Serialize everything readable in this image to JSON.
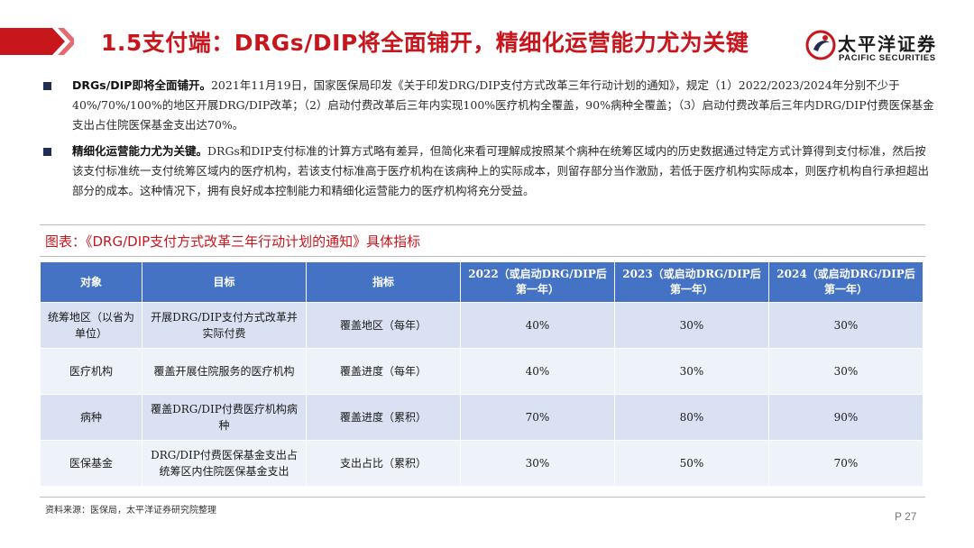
{
  "header": {
    "title": "1.5支付端：DRGs/DIP将全面铺开，精细化运营能力尤为关键",
    "accent_color": "#c8161d"
  },
  "logo": {
    "name_cn": "太平洋证券",
    "name_en": "PACIFIC SECURITIES"
  },
  "bullets": [
    {
      "lead": "DRGs/DIP即将全面铺开。",
      "text": "2021年11月19日，国家医保局印发《关于印发DRG/DIP支付方式改革三年行动计划的通知》，规定（1）2022/2023/2024年分别不少于40%/70%/100%的地区开展DRG/DIP改革；（2）启动付费改革后三年内实现100%医疗机构全覆盖，90%病种全覆盖；（3）启动付费改革后三年内DRG/DIP付费医保基金支出占住院医保基金支出达70%。"
    },
    {
      "lead": "精细化运营能力尤为关键。",
      "text": "DRGs和DIP支付标准的计算方式略有差异，但简化来看可理解成按照某个病种在统筹区域内的历史数据通过特定方式计算得到支付标准，然后按该支付标准统一支付统筹区域内的医疗机构，若该支付标准高于医疗机构在该病种上的实际成本，则留存部分当作激励，若低于医疗机构实际成本，则医疗机构自行承担超出部分的成本。这种情况下，拥有良好成本控制能力和精细化运营能力的医疗机构将充分受益。"
    }
  ],
  "chart_caption": "图表：《DRG/DIP支付方式改革三年行动计划的通知》具体指标",
  "table": {
    "headers": [
      "对象",
      "目标",
      "指标",
      "2022（或启动DRG/DIP后第一年）",
      "2023（或启动DRG/DIP后第一年）",
      "2024（或启动DRG/DIP后第一年）"
    ],
    "rows": [
      [
        "统筹地区（以省为单位）",
        "开展DRG/DIP支付方式改革并实际付费",
        "覆盖地区（每年）",
        "40%",
        "30%",
        "30%"
      ],
      [
        "医疗机构",
        "覆盖开展住院服务的医疗机构",
        "覆盖进度（每年）",
        "40%",
        "30%",
        "30%"
      ],
      [
        "病种",
        "覆盖DRG/DIP付费医疗机构病种",
        "覆盖进度（累积）",
        "70%",
        "80%",
        "90%"
      ],
      [
        "医保基金",
        "DRG/DIP付费医保基金支出占统筹区内住院医保基金支出",
        "支出占比（累积）",
        "30%",
        "50%",
        "70%"
      ]
    ],
    "header_color": "#4472c4",
    "row_color_odd": "#d9e1f2",
    "row_color_even": "#eef2f9"
  },
  "source": "资料来源：医保局，太平洋证券研究院整理",
  "page_number": "P 27"
}
